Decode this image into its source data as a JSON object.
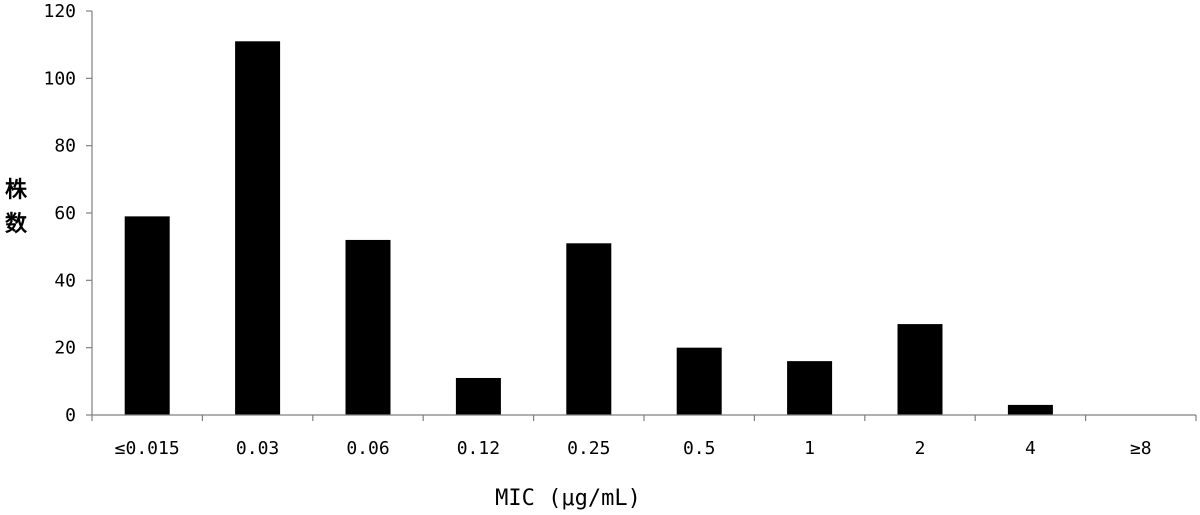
{
  "chart_data": {
    "type": "bar",
    "categories": [
      "≤0.015",
      "0.03",
      "0.06",
      "0.12",
      "0.25",
      "0.5",
      "1",
      "2",
      "4",
      "≥8"
    ],
    "values": [
      59,
      111,
      52,
      11,
      51,
      20,
      16,
      27,
      3,
      0
    ],
    "xlabel": "MIC (μg/mL)",
    "ylabel": "株数",
    "ylim": [
      0,
      120
    ],
    "yticks": [
      0,
      20,
      40,
      60,
      80,
      100,
      120
    ],
    "grid": false,
    "legend": "none",
    "bar_color": "#000000",
    "axis_color": "#808080"
  }
}
